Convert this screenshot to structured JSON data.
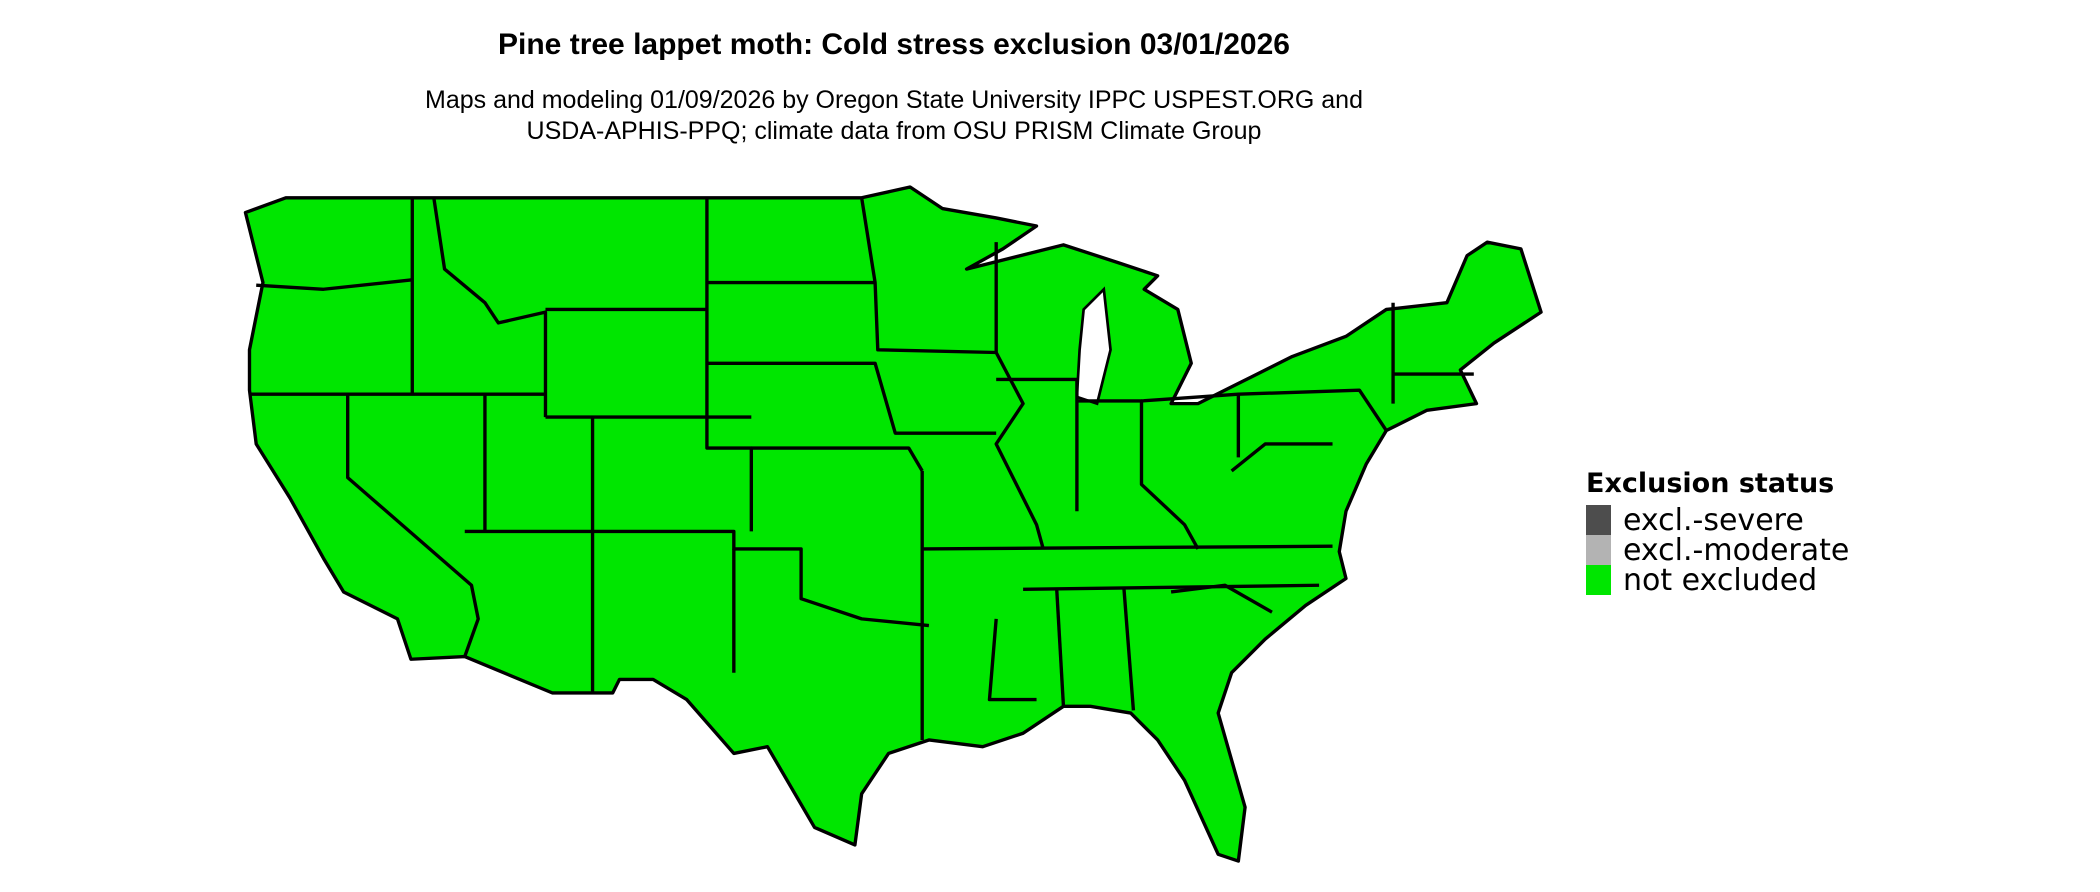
{
  "title": "Pine tree lappet moth: Cold stress exclusion 03/01/2026",
  "subtitle_lines": [
    "Maps and modeling 01/09/2026 by Oregon State University IPPC USPEST.ORG and",
    "USDA-APHIS-PPQ; climate data from OSU PRISM Climate Group"
  ],
  "legend": {
    "title": "Exclusion status",
    "items": [
      {
        "label": "excl.-severe",
        "color": "#4d4d4d"
      },
      {
        "label": "excl.-moderate",
        "color": "#b3b3b3"
      },
      {
        "label": "not excluded",
        "color": "#00e600"
      }
    ]
  },
  "map": {
    "region": "contiguous United States",
    "status_shown": "not excluded",
    "fill": "#00e600",
    "border": "#000000"
  }
}
